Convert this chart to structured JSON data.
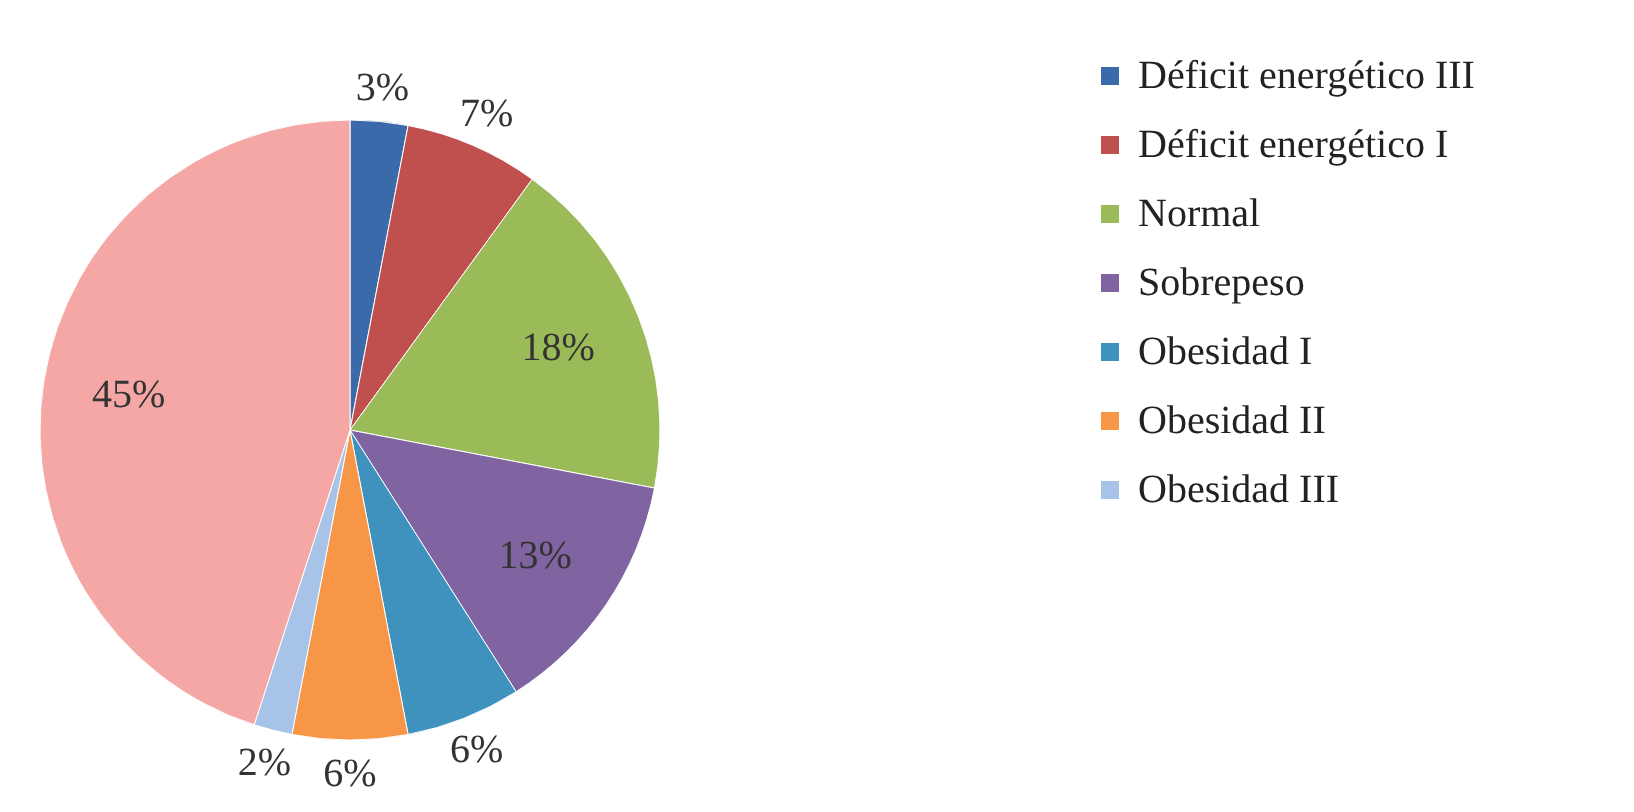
{
  "chart_data": {
    "type": "pie",
    "categories": [
      "Déficit energético III",
      "Déficit energético I",
      "Normal",
      "Sobrepeso",
      "Obesidad I",
      "Obesidad II",
      "Obesidad III",
      null
    ],
    "values": [
      3,
      7,
      18,
      13,
      6,
      6,
      2,
      45
    ],
    "colors": [
      "#3b6aab",
      "#c0504d",
      "#9bbb59",
      "#8064a2",
      "#3f92bd",
      "#f79646",
      "#a8c3e8",
      "#f4a7a5"
    ],
    "value_labels": [
      "3%",
      "7%",
      "18%",
      "13%",
      "6%",
      "6%",
      "2%",
      "45%"
    ],
    "legend": "right"
  }
}
